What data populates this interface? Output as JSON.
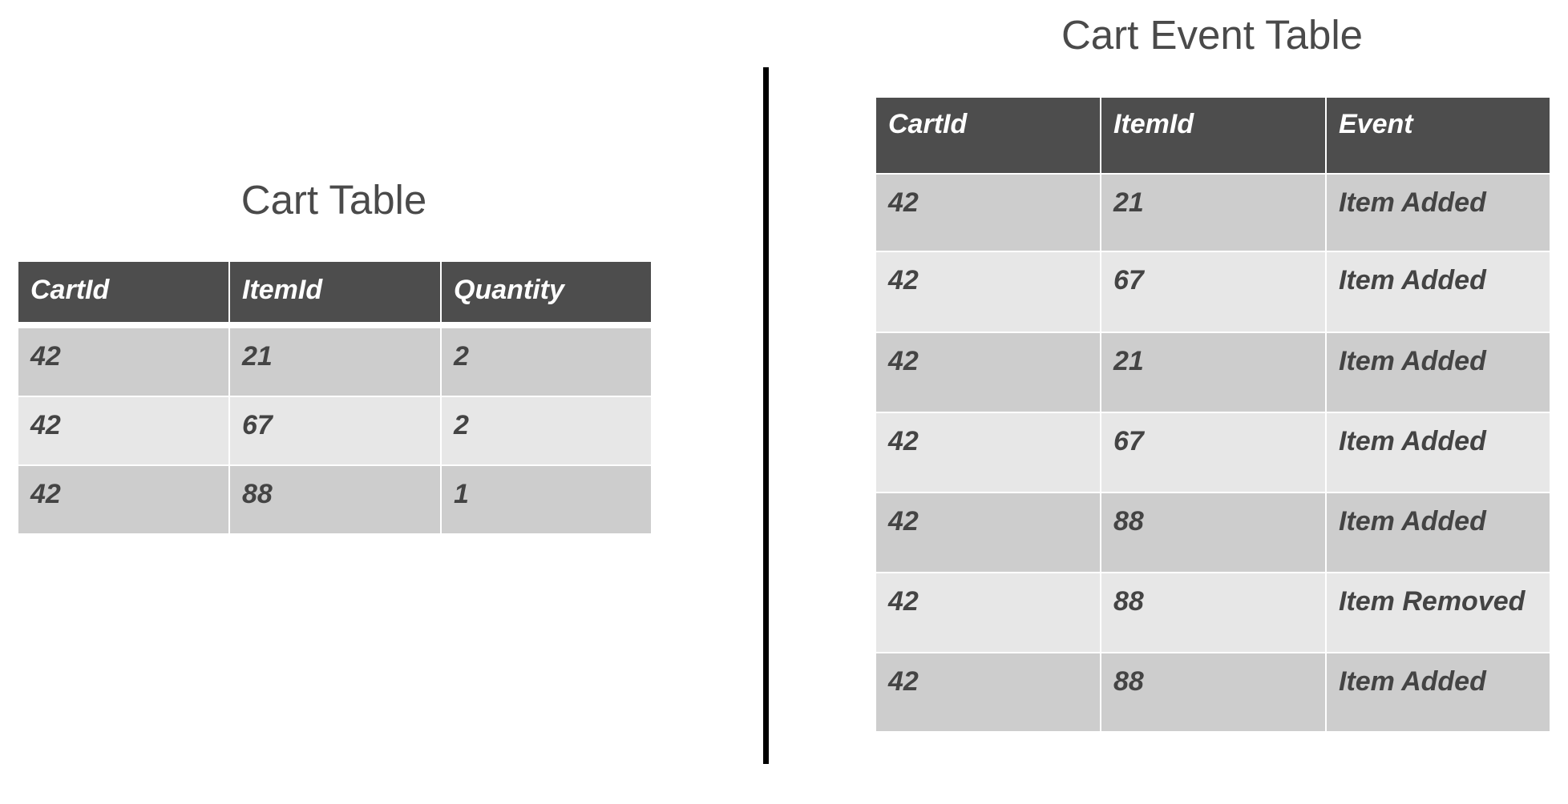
{
  "cart_table": {
    "title": "Cart Table",
    "columns": [
      "CartId",
      "ItemId",
      "Quantity"
    ],
    "rows": [
      [
        "42",
        "21",
        "2"
      ],
      [
        "42",
        "67",
        "2"
      ],
      [
        "42",
        "88",
        "1"
      ]
    ]
  },
  "cart_event_table": {
    "title": "Cart Event Table",
    "columns": [
      "CartId",
      "ItemId",
      "Event"
    ],
    "rows": [
      [
        "42",
        "21",
        "Item Added"
      ],
      [
        "42",
        "67",
        "Item Added"
      ],
      [
        "42",
        "21",
        "Item Added"
      ],
      [
        "42",
        "67",
        "Item Added"
      ],
      [
        "42",
        "88",
        "Item Added"
      ],
      [
        "42",
        "88",
        "Item Removed"
      ],
      [
        "42",
        "88",
        "Item Added"
      ]
    ]
  },
  "colors": {
    "header_bg": "#4d4d4d",
    "row_dark": "#cdcdcd",
    "row_light": "#e7e7e7",
    "text": "#444444",
    "divider": "#000000"
  }
}
